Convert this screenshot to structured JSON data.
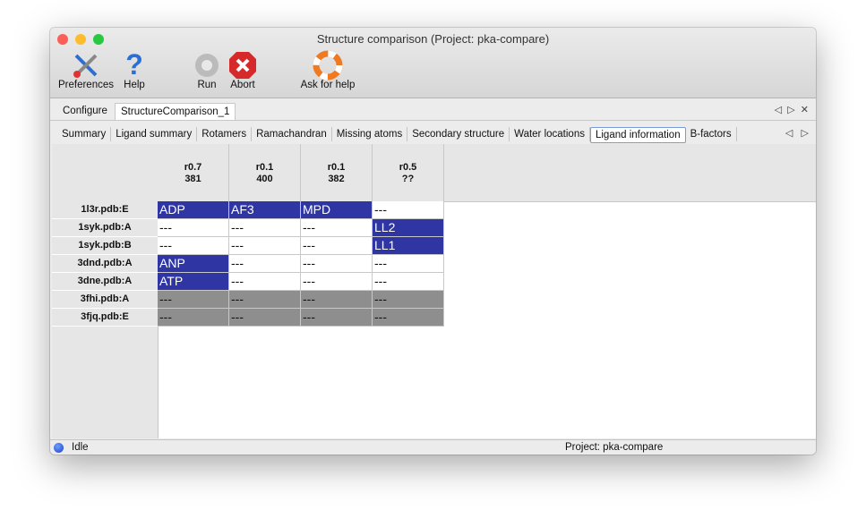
{
  "window": {
    "title": "Structure comparison (Project: pka-compare)"
  },
  "toolbar": [
    "Preferences",
    "Help",
    "Run",
    "Abort",
    "Ask for help"
  ],
  "tabs": {
    "items": [
      "Configure",
      "StructureComparison_1"
    ],
    "active": 1
  },
  "subtabs": {
    "items": [
      "Summary",
      "Ligand summary",
      "Rotamers",
      "Ramachandran",
      "Missing atoms",
      "Secondary structure",
      "Water locations",
      "Ligand information",
      "B-factors"
    ],
    "active": 7
  },
  "table": {
    "columns": [
      [
        "r0.7",
        "381"
      ],
      [
        "r0.1",
        "400"
      ],
      [
        "r0.1",
        "382"
      ],
      [
        "r0.5",
        "??"
      ]
    ],
    "rows": [
      {
        "label": "1l3r.pdb:E",
        "cells": [
          {
            "text": "ADP",
            "color": "#2f36a4"
          },
          {
            "text": "AF3",
            "color": "#2f36a4"
          },
          {
            "text": "MPD",
            "color": "#2f36a4"
          },
          {
            "text": "---",
            "color": "#ffffff"
          }
        ]
      },
      {
        "label": "1syk.pdb:A",
        "cells": [
          {
            "text": "---",
            "color": "#ffffff"
          },
          {
            "text": "---",
            "color": "#ffffff"
          },
          {
            "text": "---",
            "color": "#ffffff"
          },
          {
            "text": "LL2",
            "color": "#2f36a4"
          }
        ]
      },
      {
        "label": "1syk.pdb:B",
        "cells": [
          {
            "text": "---",
            "color": "#ffffff"
          },
          {
            "text": "---",
            "color": "#ffffff"
          },
          {
            "text": "---",
            "color": "#ffffff"
          },
          {
            "text": "LL1",
            "color": "#2f36a4"
          }
        ]
      },
      {
        "label": "3dnd.pdb:A",
        "cells": [
          {
            "text": "ANP",
            "color": "#2f36a4"
          },
          {
            "text": "---",
            "color": "#ffffff"
          },
          {
            "text": "---",
            "color": "#ffffff"
          },
          {
            "text": "---",
            "color": "#ffffff"
          }
        ]
      },
      {
        "label": "3dne.pdb:A",
        "cells": [
          {
            "text": "ATP",
            "color": "#2f36a4"
          },
          {
            "text": "---",
            "color": "#ffffff"
          },
          {
            "text": "---",
            "color": "#ffffff"
          },
          {
            "text": "---",
            "color": "#ffffff"
          }
        ]
      },
      {
        "label": "3fhi.pdb:A",
        "cells": [
          {
            "text": "---",
            "color": "#8e8e8e"
          },
          {
            "text": "---",
            "color": "#8e8e8e"
          },
          {
            "text": "---",
            "color": "#8e8e8e"
          },
          {
            "text": "---",
            "color": "#8e8e8e"
          }
        ]
      },
      {
        "label": "3fjq.pdb:E",
        "cells": [
          {
            "text": "---",
            "color": "#8e8e8e"
          },
          {
            "text": "---",
            "color": "#8e8e8e"
          },
          {
            "text": "---",
            "color": "#8e8e8e"
          },
          {
            "text": "---",
            "color": "#8e8e8e"
          }
        ]
      }
    ]
  },
  "status": {
    "state": "Idle",
    "project": "Project: pka-compare"
  }
}
